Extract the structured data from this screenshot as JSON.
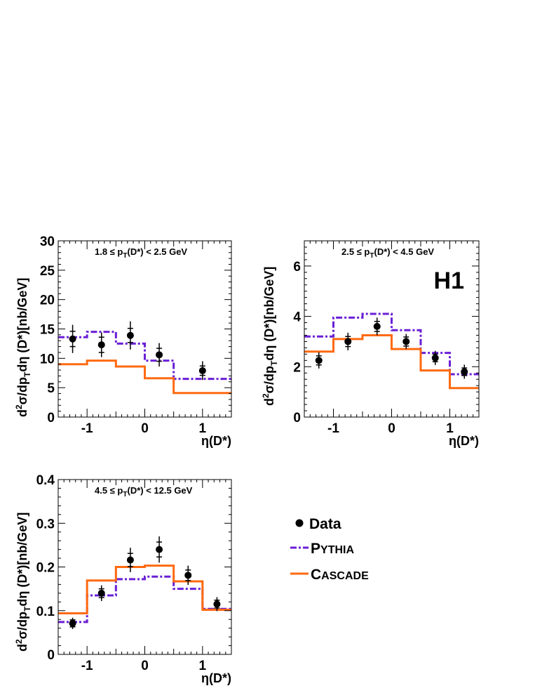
{
  "experiment_label": "H1",
  "colors": {
    "data": "#000000",
    "pythia": "#6a1fd6",
    "cascade": "#ff6a10"
  },
  "legend": {
    "data_label": "Data",
    "pythia_first": "P",
    "pythia_rest": "YTHIA",
    "cascade_first": "C",
    "cascade_rest": "ASCADE"
  },
  "chart_data": [
    {
      "type": "step+errorbar",
      "panel_label": "1.8 ≤ p_T(D*) < 2.5 GeV",
      "label_pre": "1.8 ≤ p",
      "label_sub": "T",
      "label_post": "(D*) < 2.5 GeV",
      "xlabel": "η(D*)",
      "ylabel_pre": "d",
      "ylabel_sup": "2",
      "ylabel_mid": "σ/dp",
      "ylabel_sub": "T",
      "ylabel_post": "dη (D*)[nb/GeV]",
      "xlim": [
        -1.5,
        1.5
      ],
      "ylim": [
        0,
        30
      ],
      "xticks": [
        -1,
        0,
        1
      ],
      "xtick_labels": [
        "-1",
        "0",
        "1"
      ],
      "yticks": [
        0,
        5,
        10,
        15,
        20,
        25,
        30
      ],
      "ytick_labels": [
        "0",
        "5",
        "10",
        "15",
        "20",
        "25",
        "30"
      ],
      "ytick_minor_step": 1,
      "bin_edges": [
        -1.5,
        -1.0,
        -0.5,
        0.0,
        0.5,
        1.5
      ],
      "data_x": [
        -1.25,
        -0.75,
        -0.25,
        0.25,
        1.0
      ],
      "data_y": [
        13.3,
        12.3,
        13.9,
        10.6,
        7.9
      ],
      "err_stat": [
        1.3,
        1.3,
        1.2,
        1.1,
        0.8
      ],
      "err_tot": [
        2.4,
        2.1,
        2.4,
        2.0,
        1.6
      ],
      "pythia": [
        13.6,
        14.5,
        12.5,
        9.6,
        6.5
      ],
      "cascade": [
        9.0,
        9.6,
        8.6,
        6.6,
        4.1
      ]
    },
    {
      "type": "step+errorbar",
      "panel_label": "2.5 ≤ p_T(D*) < 4.5 GeV",
      "label_pre": "2.5 ≤ p",
      "label_sub": "T",
      "label_post": "(D*) < 4.5 GeV",
      "xlabel": "η(D*)",
      "ylabel_pre": "d",
      "ylabel_sup": "2",
      "ylabel_mid": "σ/dp",
      "ylabel_sub": "T",
      "ylabel_post": "dη (D*)[nb/GeV]",
      "xlim": [
        -1.5,
        1.5
      ],
      "ylim": [
        0,
        7
      ],
      "xticks": [
        -1,
        0,
        1
      ],
      "xtick_labels": [
        "-1",
        "0",
        "1"
      ],
      "yticks": [
        0,
        2,
        4,
        6
      ],
      "ytick_labels": [
        "0",
        "2",
        "4",
        "6"
      ],
      "ytick_minor_step": 0.25,
      "bin_edges": [
        -1.5,
        -1.0,
        -0.5,
        0.0,
        0.5,
        1.0,
        1.5
      ],
      "data_x": [
        -1.25,
        -0.75,
        -0.25,
        0.25,
        0.75,
        1.25
      ],
      "data_y": [
        2.25,
        3.0,
        3.6,
        3.0,
        2.35,
        1.8
      ],
      "err_stat": [
        0.18,
        0.2,
        0.2,
        0.18,
        0.15,
        0.15
      ],
      "err_tot": [
        0.32,
        0.35,
        0.35,
        0.3,
        0.28,
        0.28
      ],
      "pythia": [
        3.2,
        3.95,
        4.1,
        3.45,
        2.55,
        1.7
      ],
      "cascade": [
        2.6,
        3.1,
        3.25,
        2.7,
        1.85,
        1.15
      ]
    },
    {
      "type": "step+errorbar",
      "panel_label": "4.5 ≤ p_T(D*) < 12.5 GeV",
      "label_pre": "4.5 ≤ p",
      "label_sub": "T",
      "label_post": "(D*) < 12.5 GeV",
      "xlabel": "η(D*)",
      "ylabel_pre": "d",
      "ylabel_sup": "2",
      "ylabel_mid": "σ/dp",
      "ylabel_sub": "T",
      "ylabel_post": "dη (D*)[nb/GeV]",
      "xlim": [
        -1.5,
        1.5
      ],
      "ylim": [
        0,
        0.4
      ],
      "xticks": [
        -1,
        0,
        1
      ],
      "xtick_labels": [
        "-1",
        "0",
        "1"
      ],
      "yticks": [
        0,
        0.1,
        0.2,
        0.3,
        0.4
      ],
      "ytick_labels": [
        "0",
        "0.1",
        "0.2",
        "0.3",
        "0.4"
      ],
      "ytick_minor_step": 0.02,
      "bin_edges": [
        -1.5,
        -1.0,
        -0.5,
        0.0,
        0.5,
        1.0,
        1.5
      ],
      "data_x": [
        -1.25,
        -0.75,
        -0.25,
        0.25,
        0.75,
        1.25
      ],
      "data_y": [
        0.071,
        0.14,
        0.216,
        0.24,
        0.181,
        0.115
      ],
      "err_stat": [
        0.008,
        0.01,
        0.015,
        0.017,
        0.012,
        0.009
      ],
      "err_tot": [
        0.013,
        0.018,
        0.028,
        0.03,
        0.022,
        0.016
      ],
      "pythia": [
        0.074,
        0.135,
        0.172,
        0.178,
        0.15,
        0.104
      ],
      "cascade": [
        0.094,
        0.169,
        0.2,
        0.203,
        0.167,
        0.102
      ]
    }
  ]
}
